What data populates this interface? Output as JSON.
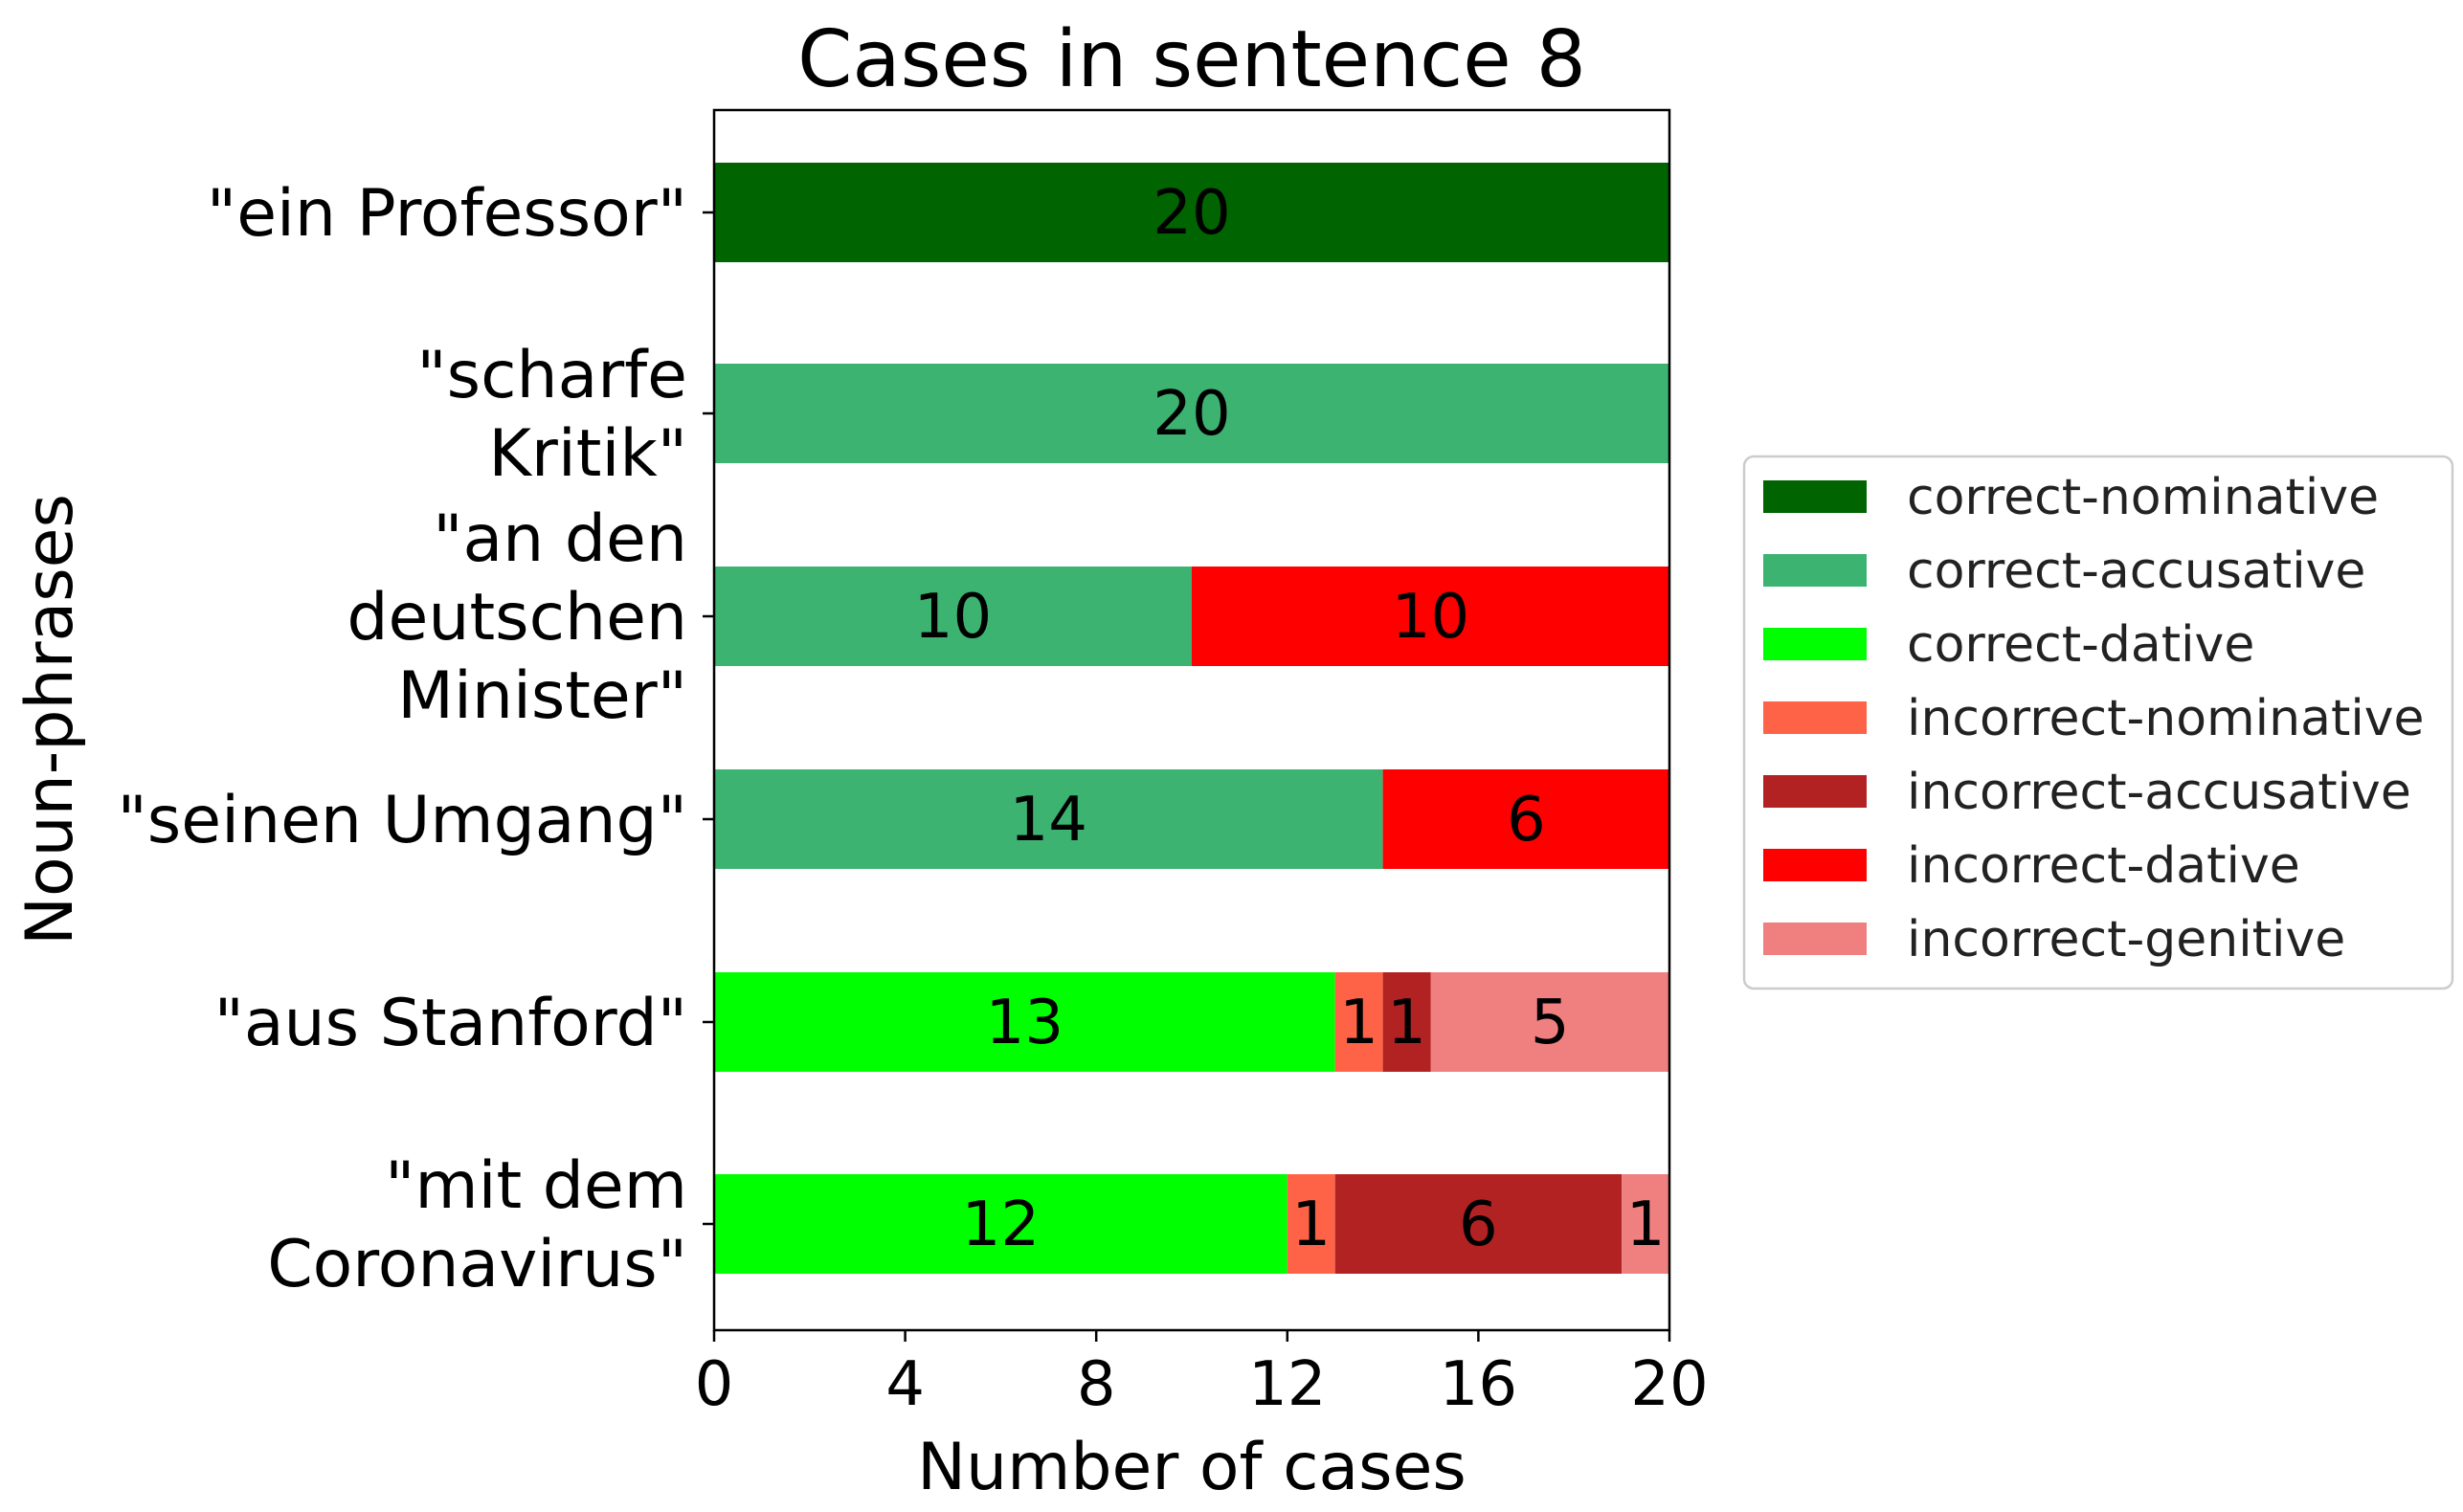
{
  "chart_data": {
    "type": "bar",
    "orientation": "horizontal",
    "stacked": true,
    "title": "Cases in sentence 8",
    "xlabel": "Number of cases",
    "ylabel": "Noun-phrases",
    "xlim": [
      0,
      20
    ],
    "xticks": [
      "0",
      "4",
      "8",
      "12",
      "16",
      "20"
    ],
    "grid": false,
    "legend_position": "right",
    "categories": [
      [
        "\"ein Professor\""
      ],
      [
        "\"scharfe",
        "Kritik\""
      ],
      [
        "\"an den",
        "deutschen",
        "Minister\""
      ],
      [
        "\"seinen Umgang\""
      ],
      [
        "\"aus Stanford\""
      ],
      [
        "\"mit dem",
        "Coronavirus\""
      ]
    ],
    "series": [
      {
        "name": "correct-nominative",
        "color": "#006400",
        "values": [
          20,
          0,
          0,
          0,
          0,
          0
        ]
      },
      {
        "name": "correct-accusative",
        "color": "#3CB371",
        "values": [
          0,
          20,
          10,
          14,
          0,
          0
        ]
      },
      {
        "name": "correct-dative",
        "color": "#00FF00",
        "values": [
          0,
          0,
          0,
          0,
          13,
          12
        ]
      },
      {
        "name": "incorrect-nominative",
        "color": "#FF6347",
        "values": [
          0,
          0,
          0,
          0,
          1,
          1
        ]
      },
      {
        "name": "incorrect-accusative",
        "color": "#B22222",
        "values": [
          0,
          0,
          0,
          0,
          1,
          6
        ]
      },
      {
        "name": "incorrect-dative",
        "color": "#FF0000",
        "values": [
          0,
          0,
          10,
          6,
          0,
          0
        ]
      },
      {
        "name": "incorrect-genitive",
        "color": "#F08080",
        "values": [
          0,
          0,
          0,
          0,
          5,
          1
        ]
      }
    ]
  }
}
